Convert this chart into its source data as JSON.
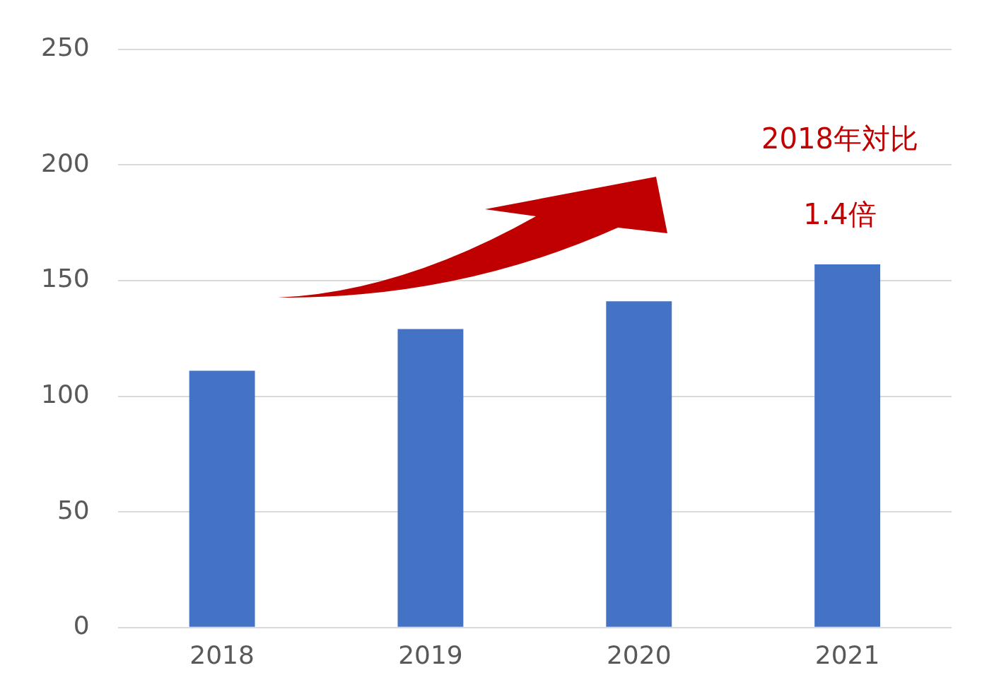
{
  "chart_data": {
    "type": "bar",
    "categories": [
      "2018",
      "2019",
      "2020",
      "2021"
    ],
    "values": [
      111,
      129,
      141,
      157
    ],
    "color": "#4472c4",
    "ylim": [
      0,
      250
    ],
    "yticks": [
      0,
      50,
      100,
      150,
      200,
      250
    ],
    "grid": "y",
    "legend": false,
    "annotations": [
      "2018年対比",
      "1.4倍"
    ]
  }
}
